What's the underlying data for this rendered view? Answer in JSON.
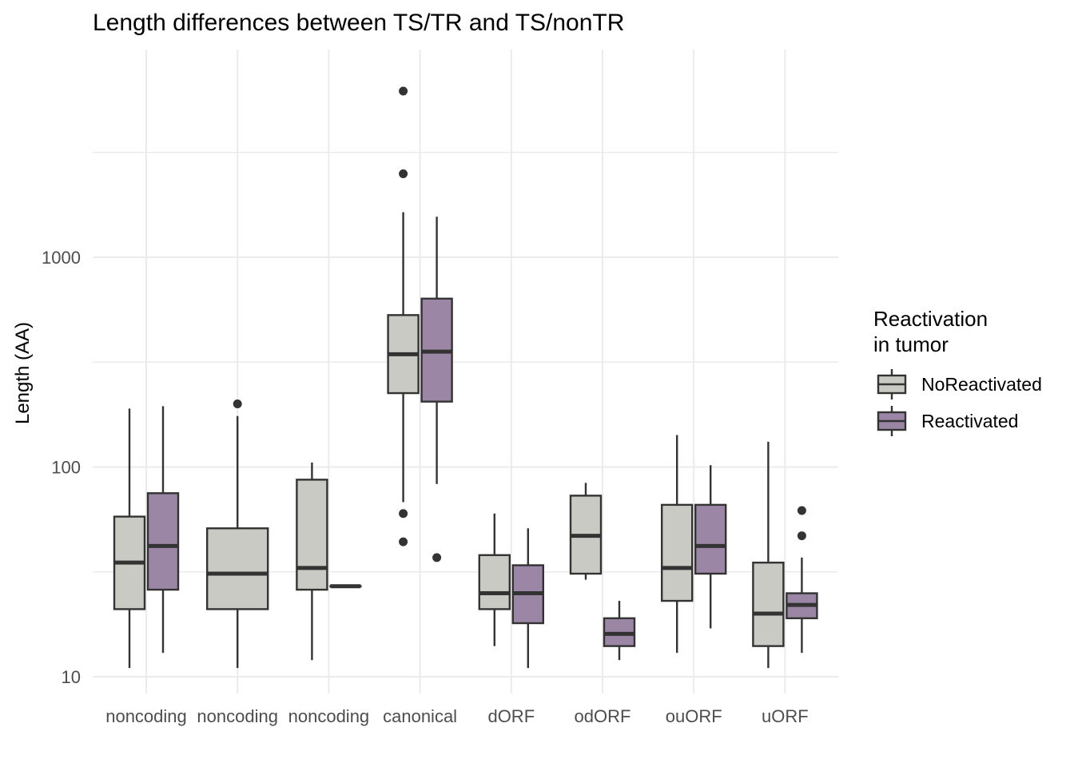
{
  "chart_data": {
    "type": "boxplot",
    "title": "Length differences between TS/TR and TS/nonTR",
    "xlabel": "",
    "ylabel": "Length (AA)",
    "y_scale": "log10",
    "ylim": [
      8.5,
      7000
    ],
    "y_ticks": [
      10,
      100,
      1000
    ],
    "y_tick_labels": [
      "10",
      "100",
      "1000"
    ],
    "grid": true,
    "legend": {
      "title_lines": [
        "Reactivation",
        "in tumor"
      ],
      "position": "right",
      "entries": [
        "NoReactivated",
        "Reactivated"
      ]
    },
    "colors": {
      "NoReactivated": "#cacac4",
      "Reactivated": "#9b86a6",
      "outline": "#333333",
      "grid": "#ebebeb"
    },
    "categories": [
      "noncoding",
      "noncoding",
      "noncoding",
      "canonical",
      "dORF",
      "odORF",
      "ouORF",
      "uORF"
    ],
    "series": [
      {
        "name": "NoReactivated",
        "boxes": [
          {
            "category_index": 0,
            "low": 11,
            "q1": 21,
            "median": 35,
            "q3": 58,
            "high": 190,
            "outliers": []
          },
          {
            "category_index": 1,
            "low": 11,
            "q1": 21,
            "median": 31,
            "q3": 51,
            "high": 175,
            "outliers": [
              200
            ]
          },
          {
            "category_index": 2,
            "low": 12,
            "q1": 26,
            "median": 33,
            "q3": 87,
            "high": 105,
            "outliers": []
          },
          {
            "category_index": 3,
            "low": 68,
            "q1": 225,
            "median": 345,
            "q3": 530,
            "high": 1640,
            "outliers": [
              6200,
              2500,
              60,
              44
            ]
          },
          {
            "category_index": 4,
            "low": 14,
            "q1": 21,
            "median": 25,
            "q3": 38,
            "high": 60,
            "outliers": []
          },
          {
            "category_index": 5,
            "low": 29,
            "q1": 31,
            "median": 47,
            "q3": 73,
            "high": 84,
            "outliers": []
          },
          {
            "category_index": 6,
            "low": 13,
            "q1": 23,
            "median": 33,
            "q3": 66,
            "high": 142,
            "outliers": []
          },
          {
            "category_index": 7,
            "low": 11,
            "q1": 14,
            "median": 20,
            "q3": 35,
            "high": 132,
            "outliers": []
          }
        ]
      },
      {
        "name": "Reactivated",
        "boxes": [
          {
            "category_index": 0,
            "low": 13,
            "q1": 26,
            "median": 42,
            "q3": 75,
            "high": 195,
            "outliers": []
          },
          {
            "category_index": 2,
            "low": 27,
            "q1": 27,
            "median": 27,
            "q3": 27,
            "high": 27,
            "outliers": []
          },
          {
            "category_index": 3,
            "low": 83,
            "q1": 205,
            "median": 355,
            "q3": 635,
            "high": 1560,
            "outliers": [
              37
            ]
          },
          {
            "category_index": 4,
            "low": 11,
            "q1": 18,
            "median": 25,
            "q3": 34,
            "high": 51,
            "outliers": []
          },
          {
            "category_index": 5,
            "low": 12,
            "q1": 14,
            "median": 16,
            "q3": 19,
            "high": 23,
            "outliers": []
          },
          {
            "category_index": 6,
            "low": 17,
            "q1": 31,
            "median": 42,
            "q3": 66,
            "high": 102,
            "outliers": []
          },
          {
            "category_index": 7,
            "low": 13,
            "q1": 19,
            "median": 22,
            "q3": 25,
            "high": 37,
            "outliers": [
              62,
              47
            ]
          }
        ]
      }
    ]
  }
}
